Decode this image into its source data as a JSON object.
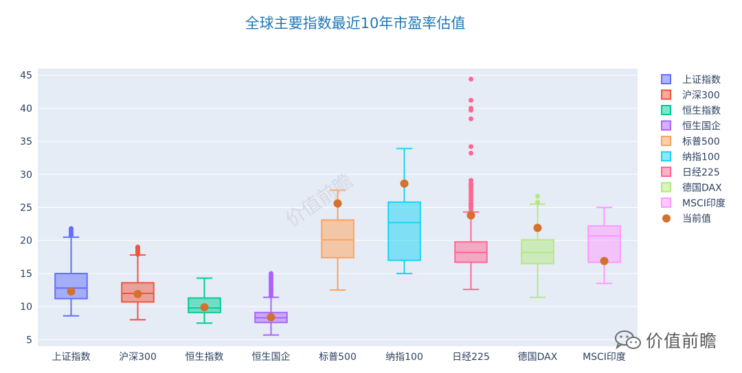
{
  "chart_data": {
    "type": "box",
    "title": "全球主要指数最近10年市盈率估值",
    "xlabel": "",
    "ylabel": "",
    "ylim": [
      4,
      46
    ],
    "yticks": [
      5,
      10,
      15,
      20,
      25,
      30,
      35,
      40,
      45
    ],
    "grid": true,
    "legend_position": "right",
    "current_value_label": "当前值",
    "current_value_color": "#d2722e",
    "series": [
      {
        "name": "上证指数",
        "color": "#636efa",
        "min": 8.6,
        "q1": 11.2,
        "median": 12.8,
        "q3": 15.0,
        "max": 20.5,
        "outliers": [
          20.8,
          21.0,
          21.3,
          21.6,
          21.8
        ],
        "current": 12.3
      },
      {
        "name": "沪深300",
        "color": "#ef553b",
        "min": 8.0,
        "q1": 10.7,
        "median": 12.0,
        "q3": 13.6,
        "max": 17.8,
        "outliers": [
          17.9,
          18.2,
          18.5,
          18.8,
          19.0
        ],
        "current": 11.9
      },
      {
        "name": "恒生指数",
        "color": "#00cc96",
        "min": 7.5,
        "q1": 9.1,
        "median": 9.8,
        "q3": 11.3,
        "max": 14.3,
        "outliers": [],
        "current": 9.9
      },
      {
        "name": "恒生国企",
        "color": "#ab63fa",
        "min": 5.7,
        "q1": 7.6,
        "median": 8.3,
        "q3": 9.1,
        "max": 11.4,
        "outliers": [
          11.6,
          12.0,
          12.3,
          12.6,
          12.9,
          13.2,
          13.5,
          13.8,
          14.1,
          14.4,
          14.7,
          15.0
        ],
        "current": 8.4
      },
      {
        "name": "标普500",
        "color": "#ffa15a",
        "min": 12.5,
        "q1": 17.4,
        "median": 20.1,
        "q3": 23.1,
        "max": 27.6,
        "outliers": [],
        "current": 25.6
      },
      {
        "name": "纳指100",
        "color": "#19d3f3",
        "min": 15.0,
        "q1": 17.0,
        "median": 22.7,
        "q3": 25.8,
        "max": 33.9,
        "outliers": [],
        "current": 28.6
      },
      {
        "name": "日经225",
        "color": "#ff6692",
        "min": 12.6,
        "q1": 16.7,
        "median": 18.2,
        "q3": 19.8,
        "max": 24.3,
        "outliers": [
          24.6,
          25.0,
          25.3,
          25.6,
          26.0,
          26.4,
          26.8,
          27.2,
          27.6,
          28.0,
          28.3,
          28.6,
          29.1,
          33.2,
          34.2,
          38.4,
          39.7,
          40.0,
          41.2,
          44.4
        ],
        "current": 23.8
      },
      {
        "name": "德国DAX",
        "color": "#b6e880",
        "min": 11.4,
        "q1": 16.5,
        "median": 18.2,
        "q3": 20.1,
        "max": 25.5,
        "outliers": [
          25.8,
          26.7
        ],
        "current": 21.9
      },
      {
        "name": "MSCI印度",
        "color": "#ff97ff",
        "min": 13.5,
        "q1": 16.7,
        "median": 20.7,
        "q3": 22.2,
        "max": 25.0,
        "outliers": [],
        "current": 16.9
      }
    ]
  },
  "watermark": {
    "center_text": "价值前瞻",
    "brand_text": "价值前瞻",
    "brand_icon": "wechat-icon"
  }
}
